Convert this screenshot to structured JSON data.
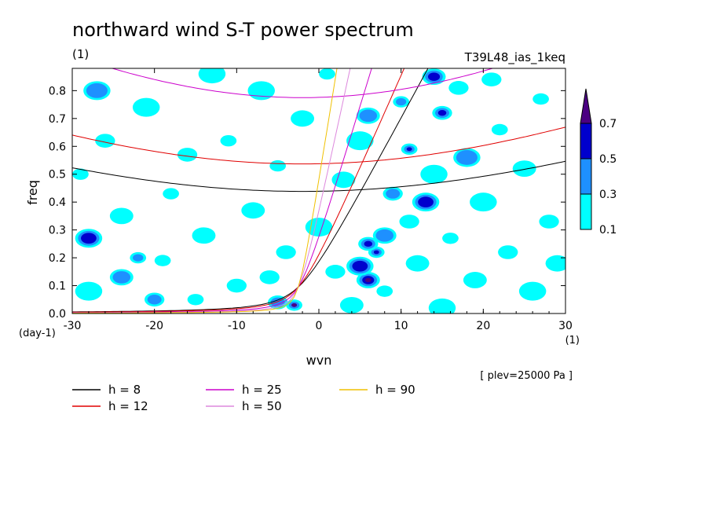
{
  "title": "northward wind S-T power spectrum",
  "subtitle_left": "(1)",
  "subtitle_right": "T39L48_ias_1keq",
  "footnote": "[ plev=25000 Pa ]",
  "chart_data": {
    "type": "contour",
    "xlabel": "wvn",
    "ylabel": "freq",
    "x_unit": "(1)",
    "y_unit": "(day-1)",
    "xlim": [
      -30,
      30
    ],
    "ylim": [
      0,
      0.88
    ],
    "xticks": [
      -30,
      -20,
      -10,
      0,
      10,
      20,
      30
    ],
    "xtick_labels": [
      "-30",
      "-20",
      "-10",
      "0",
      "10",
      "20",
      "30"
    ],
    "yticks": [
      0,
      0.1,
      0.2,
      0.3,
      0.4,
      0.5,
      0.6,
      0.7,
      0.8
    ],
    "ytick_labels": [
      "0.0",
      "0.1",
      "0.2",
      "0.3",
      "0.4",
      "0.5",
      "0.6",
      "0.7",
      "0.8"
    ],
    "colorbar": {
      "levels": [
        "0.1",
        "0.3",
        "0.5",
        "0.7"
      ],
      "colors": [
        "#00ffff",
        "#1e90ff",
        "#0000cd",
        "#4b0082"
      ]
    },
    "blobs": [
      {
        "x": -3,
        "y": 0.03,
        "level": 3
      },
      {
        "x": -5,
        "y": 0.04,
        "level": 1
      },
      {
        "x": 6,
        "y": 0.12,
        "level": 3
      },
      {
        "x": 5,
        "y": 0.17,
        "level": 2
      },
      {
        "x": 7,
        "y": 0.22,
        "level": 2
      },
      {
        "x": 6,
        "y": 0.25,
        "level": 2
      },
      {
        "x": 8,
        "y": 0.28,
        "level": 1
      },
      {
        "x": 13,
        "y": 0.4,
        "level": 2
      },
      {
        "x": 11,
        "y": 0.59,
        "level": 2
      },
      {
        "x": 15,
        "y": 0.72,
        "level": 2
      },
      {
        "x": 14,
        "y": 0.85,
        "level": 2
      },
      {
        "x": -28,
        "y": 0.27,
        "level": 2
      },
      {
        "x": -22,
        "y": 0.2,
        "level": 1
      },
      {
        "x": 9,
        "y": 0.43,
        "level": 1
      },
      {
        "x": 6,
        "y": 0.71,
        "level": 1
      },
      {
        "x": 18,
        "y": 0.56,
        "level": 1
      },
      {
        "x": 10,
        "y": 0.76,
        "level": 1
      },
      {
        "x": -20,
        "y": 0.05,
        "level": 1
      },
      {
        "x": -24,
        "y": 0.13,
        "level": 1
      },
      {
        "x": -27,
        "y": 0.8,
        "level": 1
      },
      {
        "x": -29,
        "y": 0.5,
        "level": 0
      },
      {
        "x": -26,
        "y": 0.62,
        "level": 0
      },
      {
        "x": -24,
        "y": 0.35,
        "level": 0
      },
      {
        "x": -21,
        "y": 0.74,
        "level": 0
      },
      {
        "x": -18,
        "y": 0.43,
        "level": 0
      },
      {
        "x": -16,
        "y": 0.57,
        "level": 0
      },
      {
        "x": -14,
        "y": 0.28,
        "level": 0
      },
      {
        "x": -13,
        "y": 0.86,
        "level": 0
      },
      {
        "x": -11,
        "y": 0.62,
        "level": 0
      },
      {
        "x": -10,
        "y": 0.1,
        "level": 0
      },
      {
        "x": -8,
        "y": 0.37,
        "level": 0
      },
      {
        "x": -7,
        "y": 0.8,
        "level": 0
      },
      {
        "x": -5,
        "y": 0.53,
        "level": 0
      },
      {
        "x": -4,
        "y": 0.22,
        "level": 0
      },
      {
        "x": -2,
        "y": 0.7,
        "level": 0
      },
      {
        "x": 0,
        "y": 0.31,
        "level": 0
      },
      {
        "x": 1,
        "y": 0.86,
        "level": 0
      },
      {
        "x": 2,
        "y": 0.15,
        "level": 0
      },
      {
        "x": 3,
        "y": 0.48,
        "level": 0
      },
      {
        "x": 5,
        "y": 0.62,
        "level": 0
      },
      {
        "x": 8,
        "y": 0.08,
        "level": 0
      },
      {
        "x": 11,
        "y": 0.33,
        "level": 0
      },
      {
        "x": 12,
        "y": 0.18,
        "level": 0
      },
      {
        "x": 14,
        "y": 0.5,
        "level": 0
      },
      {
        "x": 16,
        "y": 0.27,
        "level": 0
      },
      {
        "x": 17,
        "y": 0.81,
        "level": 0
      },
      {
        "x": 19,
        "y": 0.12,
        "level": 0
      },
      {
        "x": 20,
        "y": 0.4,
        "level": 0
      },
      {
        "x": 22,
        "y": 0.66,
        "level": 0
      },
      {
        "x": 23,
        "y": 0.22,
        "level": 0
      },
      {
        "x": 25,
        "y": 0.52,
        "level": 0
      },
      {
        "x": 26,
        "y": 0.08,
        "level": 0
      },
      {
        "x": 27,
        "y": 0.77,
        "level": 0
      },
      {
        "x": 28,
        "y": 0.33,
        "level": 0
      },
      {
        "x": 29,
        "y": 0.18,
        "level": 0
      },
      {
        "x": -28,
        "y": 0.08,
        "level": 0
      },
      {
        "x": -19,
        "y": 0.19,
        "level": 0
      },
      {
        "x": -6,
        "y": 0.13,
        "level": 0
      },
      {
        "x": 4,
        "y": 0.03,
        "level": 0
      },
      {
        "x": 15,
        "y": 0.02,
        "level": 0
      },
      {
        "x": -15,
        "y": 0.05,
        "level": 0
      },
      {
        "x": 21,
        "y": 0.84,
        "level": 0
      }
    ],
    "series": [
      {
        "name": "h = 8",
        "h": 8,
        "color": "#000000"
      },
      {
        "name": "h = 12",
        "h": 12,
        "color": "#e00000"
      },
      {
        "name": "h = 25",
        "h": 25,
        "color": "#cc00cc"
      },
      {
        "name": "h = 50",
        "h": 50,
        "color": "#dd88dd"
      },
      {
        "name": "h = 90",
        "h": 90,
        "color": "#f0c000"
      }
    ]
  }
}
